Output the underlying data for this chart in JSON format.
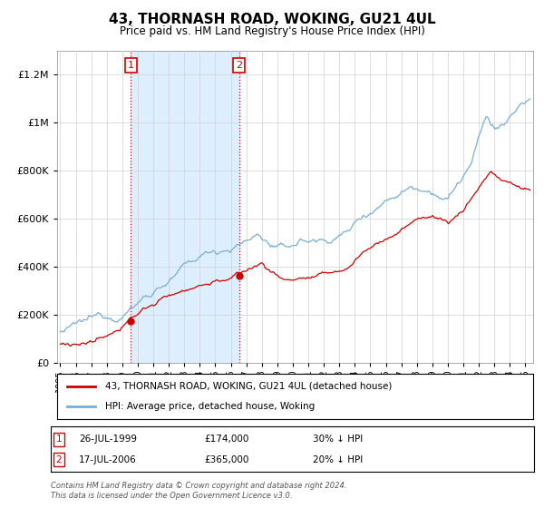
{
  "title": "43, THORNASH ROAD, WOKING, GU21 4UL",
  "subtitle": "Price paid vs. HM Land Registry's House Price Index (HPI)",
  "legend_line1": "43, THORNASH ROAD, WOKING, GU21 4UL (detached house)",
  "legend_line2": "HPI: Average price, detached house, Woking",
  "transaction1_date": "26-JUL-1999",
  "transaction1_price": "£174,000",
  "transaction1_hpi": "30% ↓ HPI",
  "transaction1_year": 1999.55,
  "transaction1_value": 174000,
  "transaction2_date": "17-JUL-2006",
  "transaction2_price": "£365,000",
  "transaction2_hpi": "20% ↓ HPI",
  "transaction2_year": 2006.54,
  "transaction2_value": 365000,
  "footnote1": "Contains HM Land Registry data © Crown copyright and database right 2024.",
  "footnote2": "This data is licensed under the Open Government Licence v3.0.",
  "line_color_red": "#cc0000",
  "line_color_blue": "#7aaed4",
  "shade_color": "#ddeeff",
  "marker_box_color": "#cc0000",
  "ylim_min": 0,
  "ylim_max": 1300000,
  "yticks": [
    0,
    200000,
    400000,
    600000,
    800000,
    1000000,
    1200000
  ],
  "xmin": 1994.8,
  "xmax": 2025.5
}
